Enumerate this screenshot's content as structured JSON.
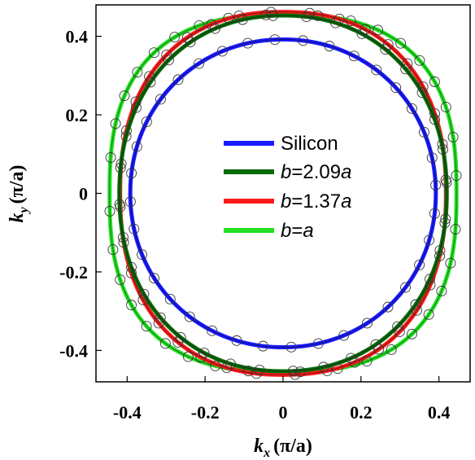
{
  "chart_data": {
    "type": "line",
    "xlabel": "k_x (π/a)",
    "ylabel": "k_y (π/a)",
    "xlim": [
      -0.48,
      0.48
    ],
    "ylim": [
      -0.48,
      0.48
    ],
    "xticks": [
      -0.4,
      -0.2,
      0,
      0.2,
      0.4
    ],
    "yticks": [
      -0.4,
      -0.2,
      0,
      0.2,
      0.4
    ],
    "xtick_labels": [
      "-0.4",
      "-0.2",
      "0",
      "0.2",
      "0.4"
    ],
    "ytick_labels": [
      "0.4",
      "0.2",
      "0",
      "-0.2",
      "-0.4"
    ],
    "grid": false,
    "legend_position": "center",
    "series": [
      {
        "name": "Silicon",
        "color": "#1a1aff",
        "rx": 0.392,
        "ry": 0.392,
        "power": 2.05
      },
      {
        "name": "b=2.09a",
        "color": "#0a6b0a",
        "rx": 0.42,
        "ry": 0.453,
        "power": 2.15
      },
      {
        "name": "b=1.37a",
        "color": "#ff1a1a",
        "rx": 0.418,
        "ry": 0.462,
        "power": 2.3
      },
      {
        "name": "b=a",
        "color": "#22e022",
        "rx": 0.445,
        "ry": 0.455,
        "power": 2.6
      }
    ],
    "markers": "open black circles along each contour"
  },
  "legend": {
    "items": [
      {
        "pre": "",
        "italic": "",
        "mid": "Silicon",
        "italic2": ""
      },
      {
        "pre": "",
        "italic": "b",
        "mid": "=2.09",
        "italic2": "a"
      },
      {
        "pre": "",
        "italic": "b",
        "mid": "=1.37",
        "italic2": "a"
      },
      {
        "pre": "",
        "italic": "b",
        "mid": "=",
        "italic2": "a"
      }
    ]
  },
  "axes": {
    "x_label_main": "k",
    "x_label_sub": "x",
    "x_label_unit": "(π/a)",
    "y_label_main": "k",
    "y_label_sub": "y",
    "y_label_unit": "(π/a)"
  }
}
